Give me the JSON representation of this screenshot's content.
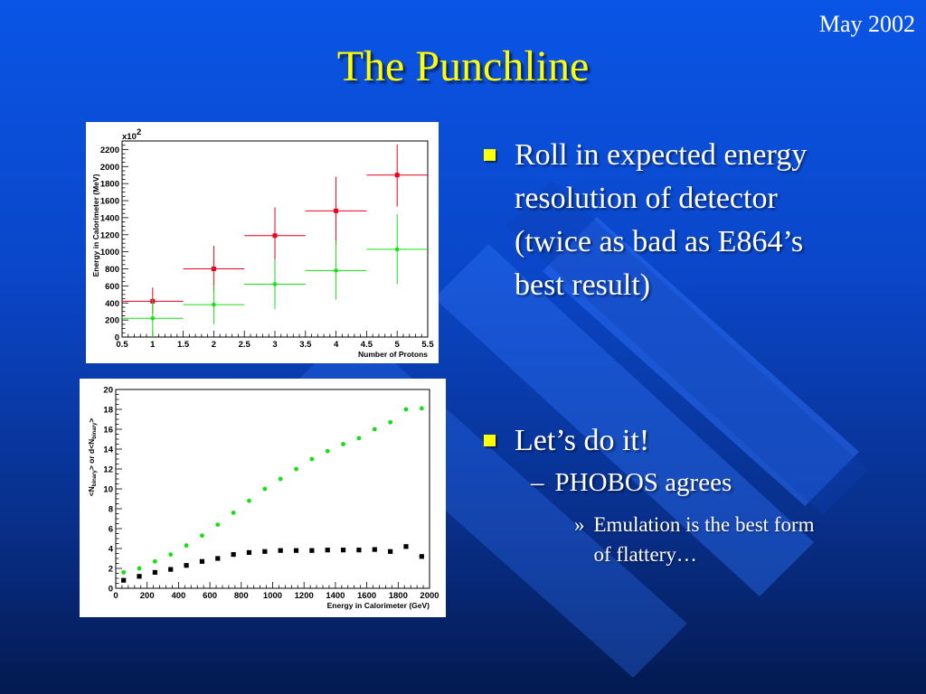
{
  "header": {
    "date": "May 2002",
    "title": "The Punchline"
  },
  "bullets": {
    "first": "Roll in expected energy resolution of detector (twice as bad as E864’s best result)",
    "second": "Let’s do it!",
    "sub_mark": "–",
    "sub": "PHOBOS agrees",
    "subsub_mark": "»",
    "subsub": "Emulation is the best form of flattery…"
  },
  "colors": {
    "title": "#ffff00",
    "bullet_square": "#ffff00",
    "red_series": "#e8001c",
    "green_series": "#14e014"
  },
  "chart_data": [
    {
      "type": "scatter",
      "xlabel": "Number of Protons",
      "ylabel": "Energy in Calorimeter (MeV)",
      "y_multiplier_label": "x10",
      "y_multiplier_exp": "2",
      "xlim": [
        0.5,
        5.5
      ],
      "ylim": [
        0,
        2300
      ],
      "x_ticks": [
        0.5,
        1,
        1.5,
        2,
        2.5,
        3,
        3.5,
        4,
        4.5,
        5,
        5.5
      ],
      "y_ticks": [
        0,
        200,
        400,
        600,
        800,
        1000,
        1200,
        1400,
        1600,
        1800,
        2000,
        2200
      ],
      "series": [
        {
          "color": "#e8001c",
          "marker": "square",
          "points": [
            {
              "x": 1,
              "y": 420,
              "x_err": 0.5,
              "y_lo": 270,
              "y_hi": 580
            },
            {
              "x": 2,
              "y": 800,
              "x_err": 0.5,
              "y_lo": 520,
              "y_hi": 1070
            },
            {
              "x": 3,
              "y": 1190,
              "x_err": 0.5,
              "y_lo": 850,
              "y_hi": 1520
            },
            {
              "x": 4,
              "y": 1480,
              "x_err": 0.5,
              "y_lo": 1080,
              "y_hi": 1880
            },
            {
              "x": 5,
              "y": 1900,
              "x_err": 0.5,
              "y_lo": 1530,
              "y_hi": 2260
            }
          ]
        },
        {
          "color": "#14e014",
          "marker": "circle",
          "points": [
            {
              "x": 1,
              "y": 220,
              "x_err": 0.5,
              "y_lo": 0,
              "y_hi": 440
            },
            {
              "x": 2,
              "y": 380,
              "x_err": 0.5,
              "y_lo": 150,
              "y_hi": 600
            },
            {
              "x": 3,
              "y": 620,
              "x_err": 0.5,
              "y_lo": 330,
              "y_hi": 910
            },
            {
              "x": 4,
              "y": 780,
              "x_err": 0.5,
              "y_lo": 440,
              "y_hi": 1130
            },
            {
              "x": 5,
              "y": 1030,
              "x_err": 0.5,
              "y_lo": 620,
              "y_hi": 1440
            }
          ]
        }
      ]
    },
    {
      "type": "scatter",
      "xlabel": "Energy in Calorimeter (GeV)",
      "ylabel_parts": [
        "<N",
        "binary",
        "> or d<N",
        "binary",
        ">"
      ],
      "xlim": [
        0,
        2000
      ],
      "ylim": [
        0,
        20
      ],
      "x_ticks": [
        0,
        200,
        400,
        600,
        800,
        1000,
        1200,
        1400,
        1600,
        1800,
        2000
      ],
      "y_ticks": [
        0,
        2,
        4,
        6,
        8,
        10,
        12,
        14,
        16,
        18,
        20
      ],
      "series": [
        {
          "color": "#14e014",
          "marker": "circle",
          "x": [
            50,
            150,
            250,
            350,
            450,
            550,
            650,
            750,
            850,
            950,
            1050,
            1150,
            1250,
            1350,
            1450,
            1550,
            1650,
            1750,
            1850,
            1950
          ],
          "y": [
            1.6,
            2.0,
            2.7,
            3.4,
            4.3,
            5.3,
            6.4,
            7.6,
            8.8,
            10.0,
            11.0,
            12.0,
            13.0,
            13.8,
            14.5,
            15.1,
            16.0,
            16.7,
            18.0,
            18.1
          ]
        },
        {
          "color": "#000000",
          "marker": "square",
          "x": [
            50,
            150,
            250,
            350,
            450,
            550,
            650,
            750,
            850,
            950,
            1050,
            1150,
            1250,
            1350,
            1450,
            1550,
            1650,
            1750,
            1850,
            1950
          ],
          "y": [
            0.8,
            1.2,
            1.6,
            1.9,
            2.3,
            2.7,
            3.0,
            3.4,
            3.6,
            3.7,
            3.8,
            3.8,
            3.8,
            3.85,
            3.85,
            3.85,
            3.9,
            3.7,
            4.2,
            3.2
          ]
        }
      ]
    }
  ]
}
